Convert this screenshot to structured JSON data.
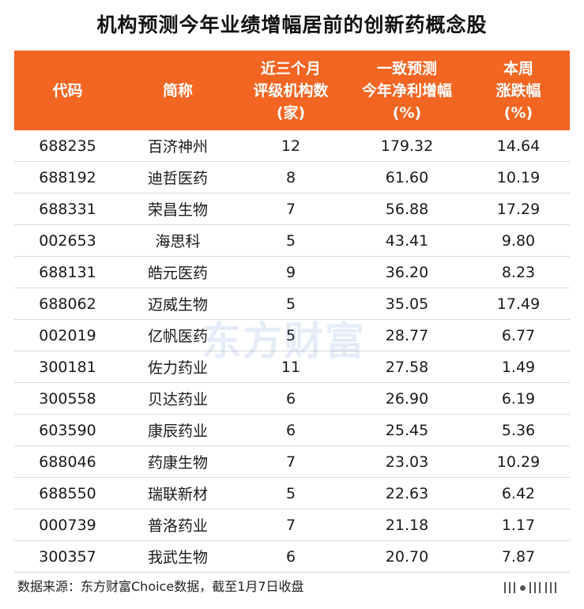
{
  "title": "机构预测今年业绩增幅居前的创新药概念股",
  "header": {
    "col1": [
      "代码"
    ],
    "col2": [
      "简称"
    ],
    "col3": [
      "近三个月",
      "评级机构数",
      "(家)"
    ],
    "col4": [
      "一致预测",
      "今年净利增幅",
      "(%)"
    ],
    "col5": [
      "本周",
      "涨跌幅",
      "(%)"
    ]
  },
  "rows": [
    {
      "code": "688235",
      "name": "百济神州",
      "agencies": "12",
      "growth": "179.32",
      "weekly": "14.64"
    },
    {
      "code": "688192",
      "name": "迪哲医药",
      "agencies": "8",
      "growth": "61.60",
      "weekly": "10.19"
    },
    {
      "code": "688331",
      "name": "荣昌生物",
      "agencies": "7",
      "growth": "56.88",
      "weekly": "17.29"
    },
    {
      "code": "002653",
      "name": "海思科",
      "agencies": "5",
      "growth": "43.41",
      "weekly": "9.80"
    },
    {
      "code": "688131",
      "name": "皓元医药",
      "agencies": "9",
      "growth": "36.20",
      "weekly": "8.23"
    },
    {
      "code": "688062",
      "name": "迈威生物",
      "agencies": "5",
      "growth": "35.05",
      "weekly": "17.49"
    },
    {
      "code": "002019",
      "name": "亿帆医药",
      "agencies": "5",
      "growth": "28.77",
      "weekly": "6.77"
    },
    {
      "code": "300181",
      "name": "佐力药业",
      "agencies": "11",
      "growth": "27.58",
      "weekly": "1.49"
    },
    {
      "code": "300558",
      "name": "贝达药业",
      "agencies": "6",
      "growth": "26.90",
      "weekly": "6.19"
    },
    {
      "code": "603590",
      "name": "康辰药业",
      "agencies": "6",
      "growth": "25.45",
      "weekly": "5.36"
    },
    {
      "code": "688046",
      "name": "药康生物",
      "agencies": "7",
      "growth": "23.03",
      "weekly": "10.29"
    },
    {
      "code": "688550",
      "name": "瑞联新材",
      "agencies": "5",
      "growth": "22.63",
      "weekly": "6.42"
    },
    {
      "code": "000739",
      "name": "普洛药业",
      "agencies": "7",
      "growth": "21.18",
      "weekly": "1.17"
    },
    {
      "code": "300357",
      "name": "我武生物",
      "agencies": "6",
      "growth": "20.70",
      "weekly": "7.87"
    }
  ],
  "watermark": "东方财富",
  "source": "数据来源：东方财富Choice数据，截至1月7日收盘",
  "colors": {
    "header_bg": "#f26522",
    "header_text": "#ffffff",
    "row_divider": "#d9d9d9"
  }
}
